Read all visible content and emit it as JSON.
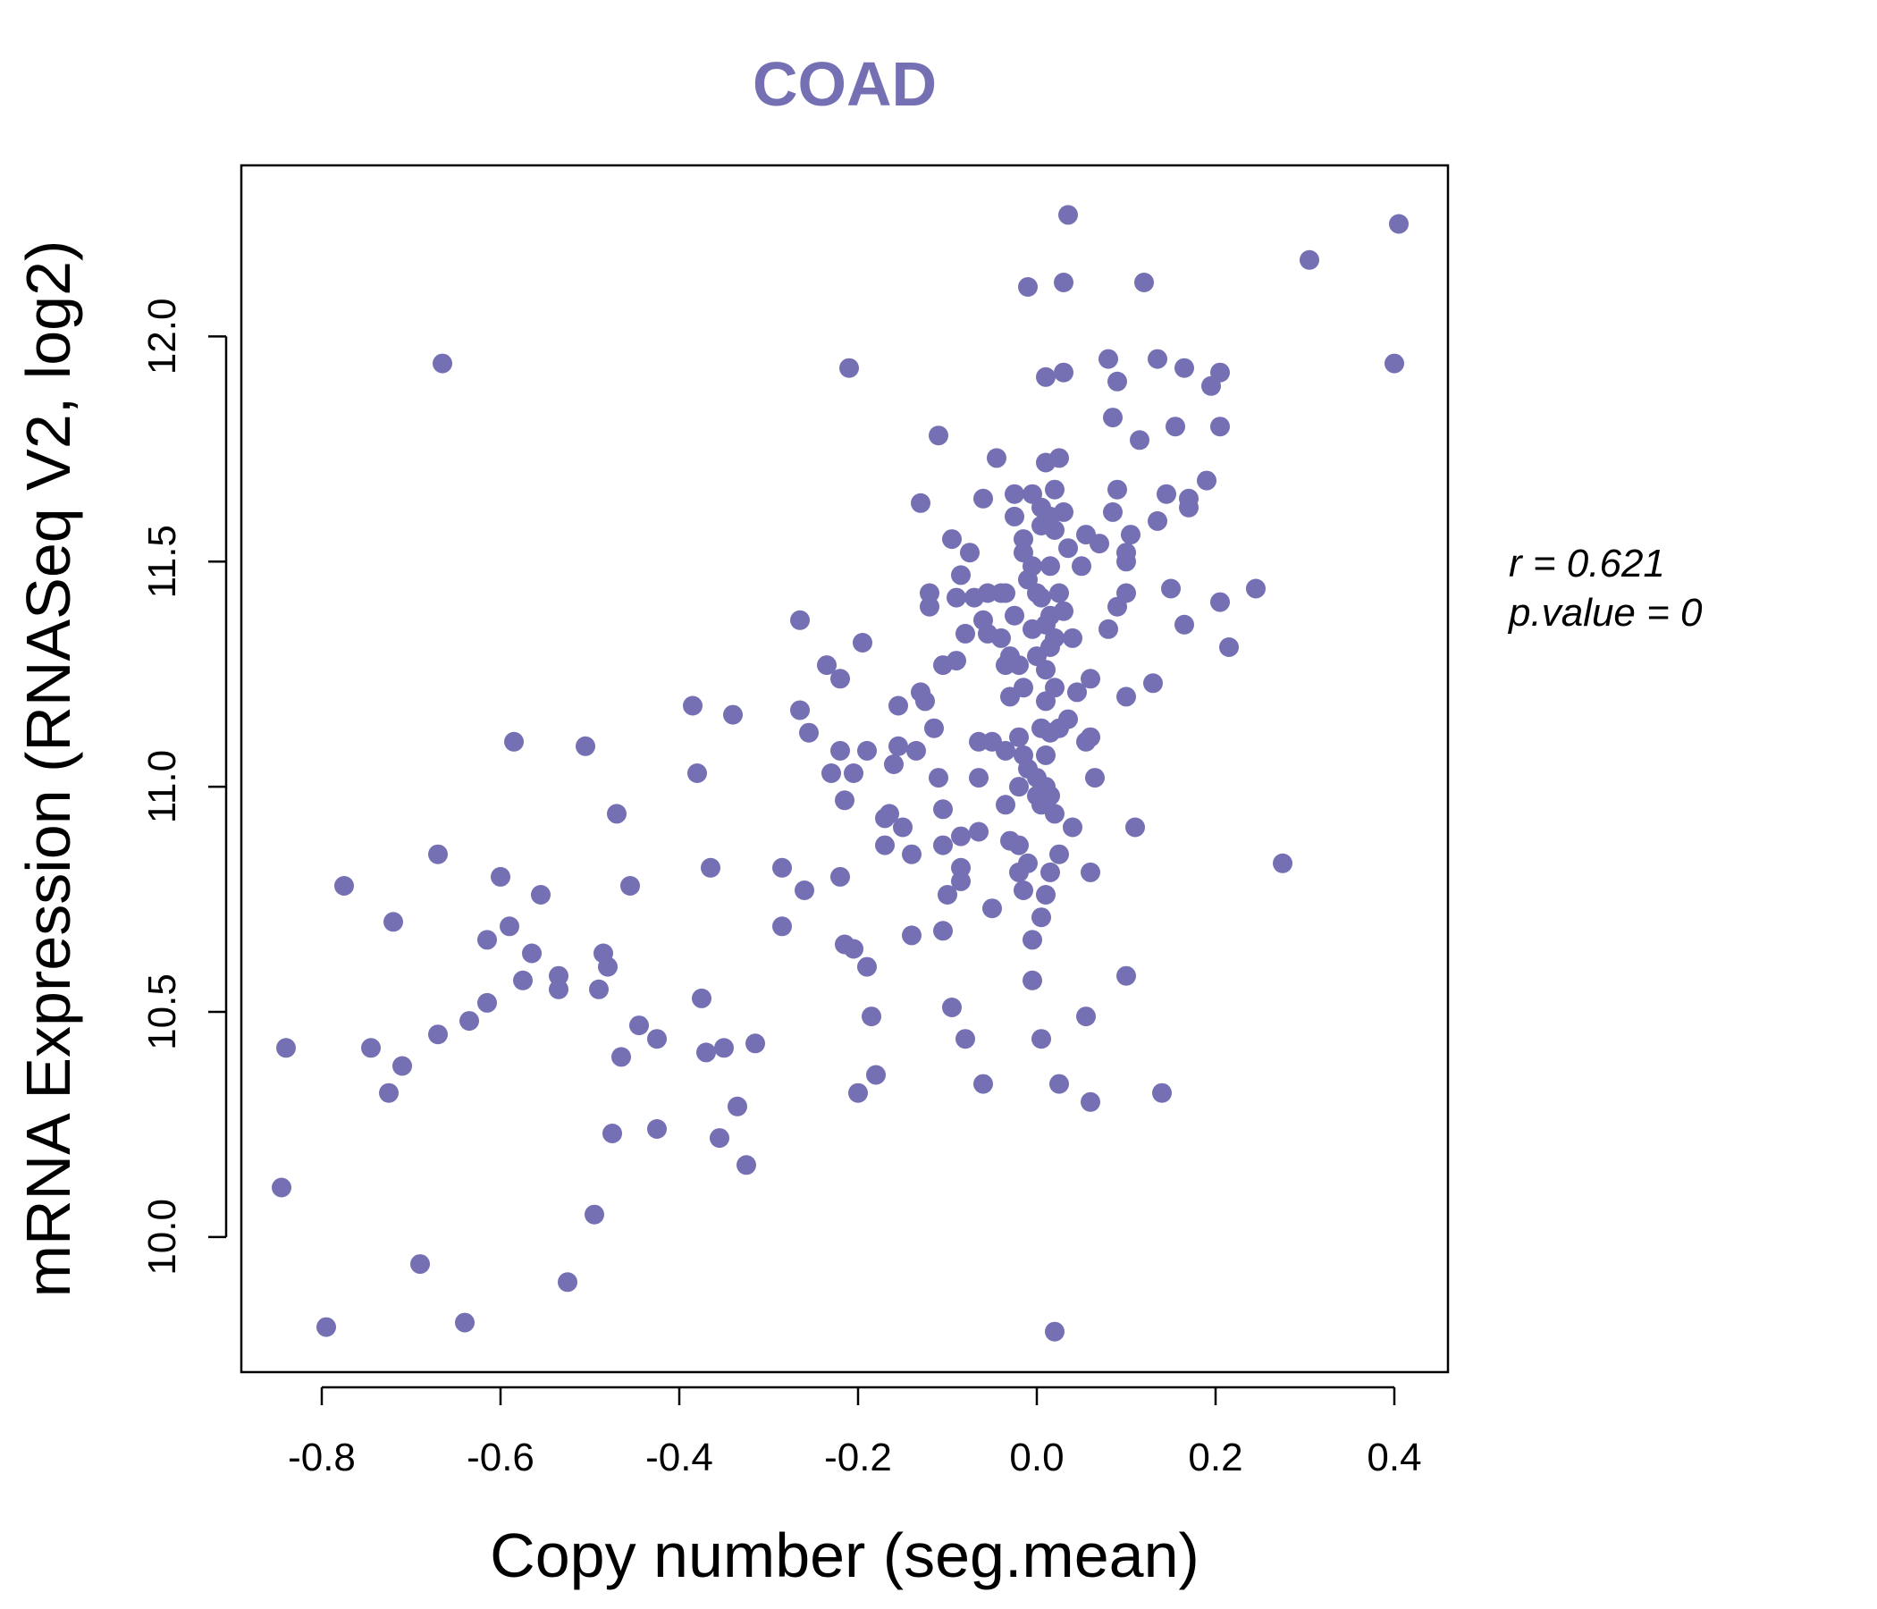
{
  "colors": {
    "accent": "#7570b3",
    "axis": "#000000",
    "background": "#ffffff"
  },
  "chart_data": {
    "type": "scatter",
    "title": "COAD",
    "xlabel": "Copy number (seg.mean)",
    "ylabel": "mRNA Expression (RNASeq V2, log2)",
    "xlim": [
      -0.89,
      0.46
    ],
    "ylim": [
      9.7,
      12.38
    ],
    "xticks": [
      -0.8,
      -0.6,
      -0.4,
      -0.2,
      0.0,
      0.2,
      0.4
    ],
    "xtick_labels": [
      "-0.8",
      "-0.6",
      "-0.4",
      "-0.2",
      "0.0",
      "0.2",
      "0.4"
    ],
    "yticks": [
      10.0,
      10.5,
      11.0,
      11.5,
      12.0
    ],
    "ytick_labels": [
      "10.0",
      "10.5",
      "11.0",
      "11.5",
      "12.0"
    ],
    "annotations": {
      "r_label": "r = 0.621",
      "p_label": "p.value = 0"
    },
    "points": [
      [
        -0.845,
        10.11
      ],
      [
        -0.84,
        10.42
      ],
      [
        -0.795,
        9.8
      ],
      [
        -0.775,
        10.78
      ],
      [
        -0.745,
        10.42
      ],
      [
        -0.725,
        10.32
      ],
      [
        -0.72,
        10.7
      ],
      [
        -0.71,
        10.38
      ],
      [
        -0.69,
        9.94
      ],
      [
        -0.67,
        10.45
      ],
      [
        -0.67,
        10.85
      ],
      [
        -0.665,
        11.94
      ],
      [
        -0.64,
        9.81
      ],
      [
        -0.635,
        10.48
      ],
      [
        -0.615,
        10.52
      ],
      [
        -0.615,
        10.66
      ],
      [
        -0.6,
        10.8
      ],
      [
        -0.59,
        10.69
      ],
      [
        -0.585,
        11.1
      ],
      [
        -0.575,
        10.57
      ],
      [
        -0.565,
        10.63
      ],
      [
        -0.555,
        10.76
      ],
      [
        -0.535,
        10.58
      ],
      [
        -0.535,
        10.55
      ],
      [
        -0.525,
        9.9
      ],
      [
        -0.505,
        11.09
      ],
      [
        -0.495,
        10.05
      ],
      [
        -0.49,
        10.55
      ],
      [
        -0.485,
        10.63
      ],
      [
        -0.48,
        10.6
      ],
      [
        -0.475,
        10.23
      ],
      [
        -0.47,
        10.94
      ],
      [
        -0.465,
        10.4
      ],
      [
        -0.455,
        10.78
      ],
      [
        -0.445,
        10.47
      ],
      [
        -0.425,
        10.44
      ],
      [
        -0.425,
        10.24
      ],
      [
        -0.385,
        11.18
      ],
      [
        -0.38,
        11.03
      ],
      [
        -0.375,
        10.53
      ],
      [
        -0.37,
        10.41
      ],
      [
        -0.365,
        10.82
      ],
      [
        -0.355,
        10.22
      ],
      [
        -0.35,
        10.42
      ],
      [
        -0.34,
        11.16
      ],
      [
        -0.335,
        10.29
      ],
      [
        -0.325,
        10.16
      ],
      [
        -0.315,
        10.43
      ],
      [
        -0.285,
        10.82
      ],
      [
        -0.285,
        10.69
      ],
      [
        -0.265,
        11.37
      ],
      [
        -0.265,
        11.17
      ],
      [
        -0.26,
        10.77
      ],
      [
        -0.255,
        11.12
      ],
      [
        -0.235,
        11.27
      ],
      [
        -0.23,
        11.03
      ],
      [
        -0.22,
        11.08
      ],
      [
        -0.22,
        11.24
      ],
      [
        -0.22,
        10.8
      ],
      [
        -0.215,
        10.97
      ],
      [
        -0.215,
        10.65
      ],
      [
        -0.21,
        11.93
      ],
      [
        -0.205,
        11.03
      ],
      [
        -0.205,
        10.64
      ],
      [
        -0.2,
        10.32
      ],
      [
        -0.195,
        11.32
      ],
      [
        -0.19,
        11.08
      ],
      [
        -0.19,
        10.6
      ],
      [
        -0.185,
        10.49
      ],
      [
        -0.18,
        10.36
      ],
      [
        -0.17,
        10.93
      ],
      [
        -0.17,
        10.87
      ],
      [
        -0.165,
        10.94
      ],
      [
        -0.16,
        11.05
      ],
      [
        -0.155,
        11.18
      ],
      [
        -0.155,
        11.09
      ],
      [
        -0.15,
        10.91
      ],
      [
        -0.14,
        10.67
      ],
      [
        -0.14,
        10.85
      ],
      [
        -0.135,
        11.08
      ],
      [
        -0.13,
        11.63
      ],
      [
        -0.13,
        11.21
      ],
      [
        -0.125,
        11.19
      ],
      [
        -0.12,
        11.4
      ],
      [
        -0.12,
        11.43
      ],
      [
        -0.115,
        11.13
      ],
      [
        -0.11,
        11.78
      ],
      [
        -0.11,
        11.02
      ],
      [
        -0.105,
        11.27
      ],
      [
        -0.105,
        10.95
      ],
      [
        -0.105,
        10.87
      ],
      [
        -0.105,
        10.68
      ],
      [
        -0.1,
        10.76
      ],
      [
        -0.095,
        11.55
      ],
      [
        -0.095,
        10.51
      ],
      [
        -0.09,
        11.28
      ],
      [
        -0.09,
        11.42
      ],
      [
        -0.085,
        11.47
      ],
      [
        -0.085,
        10.89
      ],
      [
        -0.085,
        10.82
      ],
      [
        -0.085,
        10.79
      ],
      [
        -0.08,
        11.34
      ],
      [
        -0.08,
        10.44
      ],
      [
        -0.075,
        11.52
      ],
      [
        -0.07,
        11.42
      ],
      [
        -0.065,
        10.9
      ],
      [
        -0.065,
        11.1
      ],
      [
        -0.065,
        11.02
      ],
      [
        -0.06,
        11.64
      ],
      [
        -0.06,
        11.37
      ],
      [
        -0.06,
        10.34
      ],
      [
        -0.055,
        11.34
      ],
      [
        -0.055,
        11.43
      ],
      [
        -0.05,
        11.1
      ],
      [
        -0.05,
        10.73
      ],
      [
        -0.045,
        11.73
      ],
      [
        -0.04,
        11.43
      ],
      [
        -0.04,
        11.33
      ],
      [
        -0.035,
        11.27
      ],
      [
        -0.035,
        11.08
      ],
      [
        -0.035,
        10.96
      ],
      [
        -0.035,
        11.43
      ],
      [
        -0.03,
        10.88
      ],
      [
        -0.03,
        11.2
      ],
      [
        -0.03,
        11.29
      ],
      [
        -0.025,
        11.65
      ],
      [
        -0.025,
        11.6
      ],
      [
        -0.025,
        11.38
      ],
      [
        -0.02,
        11.27
      ],
      [
        -0.02,
        11.11
      ],
      [
        -0.02,
        11.0
      ],
      [
        -0.02,
        10.87
      ],
      [
        -0.02,
        10.81
      ],
      [
        -0.015,
        11.55
      ],
      [
        -0.015,
        11.52
      ],
      [
        -0.015,
        11.22
      ],
      [
        -0.015,
        11.07
      ],
      [
        -0.015,
        10.77
      ],
      [
        -0.01,
        12.11
      ],
      [
        -0.01,
        11.46
      ],
      [
        -0.01,
        11.04
      ],
      [
        -0.01,
        10.83
      ],
      [
        -0.005,
        11.65
      ],
      [
        -0.005,
        11.49
      ],
      [
        -0.005,
        11.35
      ],
      [
        -0.005,
        10.66
      ],
      [
        -0.005,
        10.57
      ],
      [
        0.0,
        11.43
      ],
      [
        0.0,
        11.29
      ],
      [
        0.0,
        11.02
      ],
      [
        0.0,
        10.98
      ],
      [
        0.005,
        11.62
      ],
      [
        0.005,
        11.58
      ],
      [
        0.005,
        11.42
      ],
      [
        0.005,
        11.13
      ],
      [
        0.005,
        10.96
      ],
      [
        0.005,
        10.71
      ],
      [
        0.005,
        10.44
      ],
      [
        0.01,
        11.72
      ],
      [
        0.01,
        11.36
      ],
      [
        0.01,
        11.26
      ],
      [
        0.01,
        11.19
      ],
      [
        0.01,
        11.07
      ],
      [
        0.01,
        11.0
      ],
      [
        0.01,
        10.76
      ],
      [
        0.01,
        11.91
      ],
      [
        0.015,
        11.6
      ],
      [
        0.015,
        11.49
      ],
      [
        0.015,
        11.38
      ],
      [
        0.015,
        11.31
      ],
      [
        0.015,
        11.12
      ],
      [
        0.015,
        10.98
      ],
      [
        0.015,
        10.81
      ],
      [
        0.02,
        11.66
      ],
      [
        0.02,
        11.57
      ],
      [
        0.02,
        11.33
      ],
      [
        0.02,
        11.22
      ],
      [
        0.02,
        10.94
      ],
      [
        0.02,
        9.79
      ],
      [
        0.025,
        11.73
      ],
      [
        0.025,
        11.43
      ],
      [
        0.025,
        11.13
      ],
      [
        0.025,
        10.85
      ],
      [
        0.025,
        10.34
      ],
      [
        0.03,
        12.12
      ],
      [
        0.03,
        11.39
      ],
      [
        0.03,
        11.61
      ],
      [
        0.03,
        11.92
      ],
      [
        0.035,
        12.27
      ],
      [
        0.035,
        11.53
      ],
      [
        0.035,
        11.15
      ],
      [
        0.04,
        11.33
      ],
      [
        0.04,
        10.91
      ],
      [
        0.045,
        11.21
      ],
      [
        0.05,
        11.49
      ],
      [
        0.055,
        11.56
      ],
      [
        0.055,
        11.1
      ],
      [
        0.055,
        10.49
      ],
      [
        0.06,
        11.24
      ],
      [
        0.06,
        11.11
      ],
      [
        0.06,
        10.81
      ],
      [
        0.06,
        10.3
      ],
      [
        0.065,
        11.02
      ],
      [
        0.07,
        11.54
      ],
      [
        0.08,
        11.35
      ],
      [
        0.08,
        11.95
      ],
      [
        0.085,
        11.61
      ],
      [
        0.085,
        11.82
      ],
      [
        0.09,
        11.9
      ],
      [
        0.09,
        11.4
      ],
      [
        0.09,
        11.66
      ],
      [
        0.1,
        11.52
      ],
      [
        0.1,
        11.5
      ],
      [
        0.1,
        11.43
      ],
      [
        0.1,
        11.2
      ],
      [
        0.1,
        10.58
      ],
      [
        0.105,
        11.56
      ],
      [
        0.11,
        10.91
      ],
      [
        0.115,
        11.77
      ],
      [
        0.12,
        12.12
      ],
      [
        0.13,
        11.23
      ],
      [
        0.135,
        11.59
      ],
      [
        0.135,
        11.95
      ],
      [
        0.14,
        10.32
      ],
      [
        0.145,
        11.65
      ],
      [
        0.15,
        11.44
      ],
      [
        0.155,
        11.8
      ],
      [
        0.165,
        11.36
      ],
      [
        0.165,
        11.93
      ],
      [
        0.17,
        11.64
      ],
      [
        0.17,
        11.62
      ],
      [
        0.19,
        11.68
      ],
      [
        0.195,
        11.89
      ],
      [
        0.205,
        11.92
      ],
      [
        0.205,
        11.8
      ],
      [
        0.205,
        11.41
      ],
      [
        0.215,
        11.31
      ],
      [
        0.245,
        11.44
      ],
      [
        0.275,
        10.83
      ],
      [
        0.305,
        12.17
      ],
      [
        0.4,
        11.94
      ],
      [
        0.405,
        12.25
      ]
    ]
  }
}
